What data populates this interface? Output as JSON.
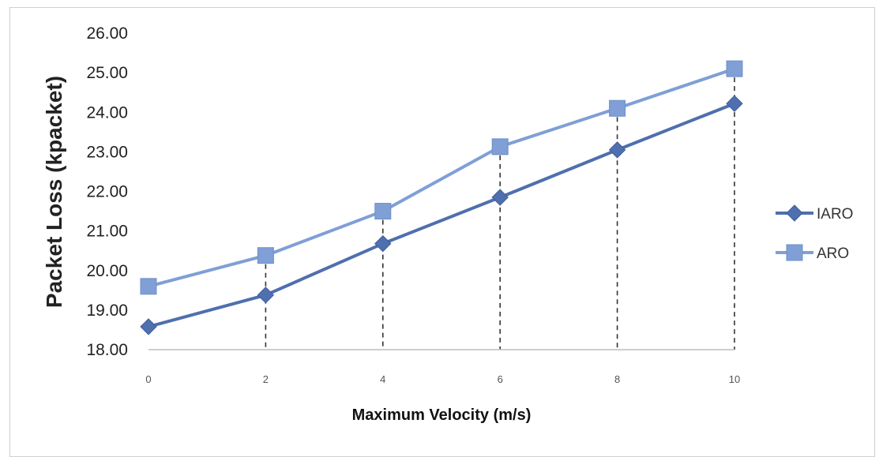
{
  "chart_data": {
    "type": "line",
    "xlabel": "Maximum Velocity (m/s)",
    "ylabel": "Packet Loss (kpacket)",
    "x": [
      0,
      2,
      4,
      6,
      8,
      10
    ],
    "x_ticks": [
      "0",
      "2",
      "4",
      "6",
      "8",
      "10"
    ],
    "y_ticks": [
      "18.00",
      "19.00",
      "20.00",
      "21.00",
      "22.00",
      "23.00",
      "24.00",
      "25.00",
      "26.00"
    ],
    "ylim": [
      18,
      26
    ],
    "xlim": [
      0,
      10
    ],
    "grid": false,
    "drop_lines": true,
    "legend_position": "right",
    "series": [
      {
        "name": "IARO",
        "marker": "diamond",
        "color": "#4f6fae",
        "values": [
          18.58,
          19.38,
          20.68,
          21.85,
          23.05,
          24.22
        ]
      },
      {
        "name": "ARO",
        "marker": "square",
        "color": "#7f9fd6",
        "values": [
          19.6,
          20.38,
          21.5,
          23.13,
          24.1,
          25.1
        ]
      }
    ]
  }
}
